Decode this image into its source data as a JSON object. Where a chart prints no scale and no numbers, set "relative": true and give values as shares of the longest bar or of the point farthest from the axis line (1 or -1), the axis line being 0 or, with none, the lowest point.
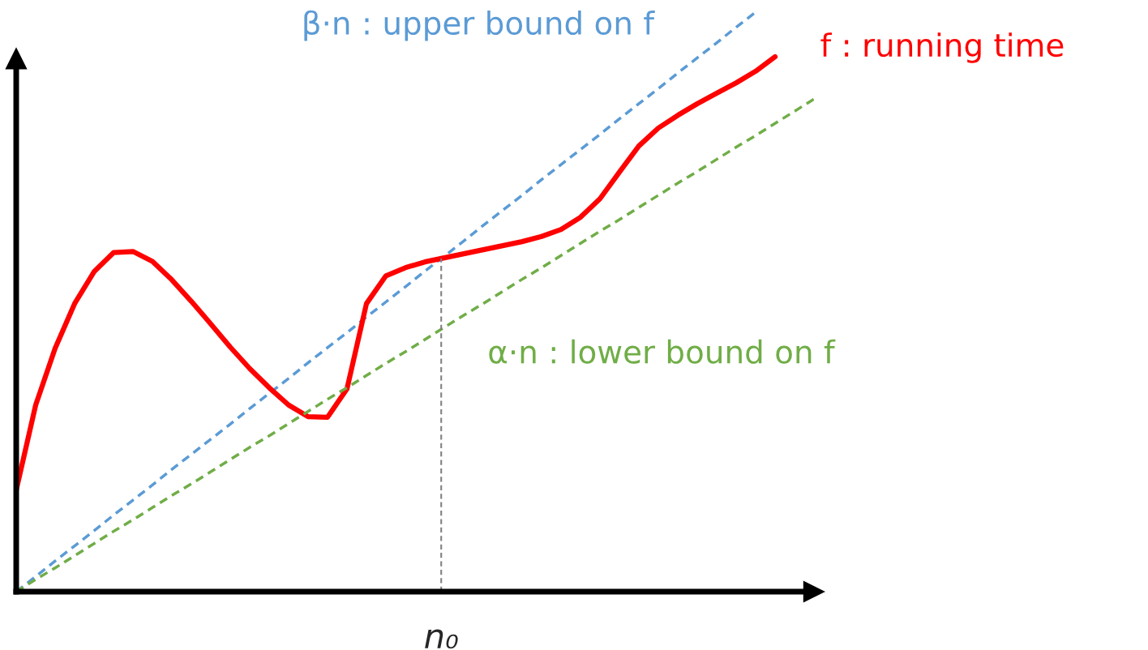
{
  "chart_data": {
    "type": "line",
    "relative": true,
    "legend": false,
    "marker": "none",
    "annotations": [
      "n₀"
    ],
    "categories": [
      null,
      null,
      null,
      null,
      null,
      null,
      null,
      null,
      null,
      null,
      null,
      null,
      null,
      null,
      null,
      null,
      null,
      null,
      null,
      null,
      null,
      null,
      null,
      null,
      null,
      null,
      null,
      null,
      null,
      null,
      null,
      null,
      null,
      null,
      null,
      null,
      null,
      null,
      null,
      null,
      null,
      null
    ],
    "series": [
      {
        "name": "β·n : upper bound on f",
        "color": "#5b9bd5",
        "line_style": "dashed",
        "values": [
          0,
          0.026,
          0.053,
          0.079,
          0.105,
          0.132,
          0.158,
          0.184,
          0.211,
          0.237,
          0.263,
          0.289,
          0.316,
          0.342,
          0.368,
          0.395,
          0.421,
          0.447,
          0.474,
          0.5,
          0.526,
          0.553,
          0.579,
          0.605,
          0.632,
          0.658,
          0.684,
          0.711,
          0.737,
          0.763,
          0.789,
          0.816,
          0.842,
          0.868,
          0.895,
          0.921,
          0.947,
          0.974,
          1.0,
          null,
          null,
          null
        ]
      },
      {
        "name": "f : running time",
        "color": "#ff0000",
        "line_style": "solid",
        "values": [
          0.175,
          0.322,
          0.42,
          0.497,
          0.552,
          0.585,
          0.587,
          0.57,
          0.538,
          0.501,
          0.462,
          0.422,
          0.385,
          0.352,
          0.322,
          0.302,
          0.301,
          0.35,
          0.497,
          0.545,
          0.559,
          0.569,
          0.576,
          0.583,
          0.59,
          0.597,
          0.604,
          0.613,
          0.625,
          0.646,
          0.678,
          0.724,
          0.769,
          0.8,
          0.822,
          0.842,
          0.86,
          0.878,
          0.898,
          0.923,
          null,
          null
        ]
      },
      {
        "name": "α·n : lower bound on f",
        "color": "#70ad47",
        "line_style": "dashed",
        "values": [
          0,
          0.021,
          0.041,
          0.062,
          0.083,
          0.104,
          0.124,
          0.145,
          0.166,
          0.186,
          0.207,
          0.228,
          0.249,
          0.269,
          0.29,
          0.311,
          0.332,
          0.352,
          0.373,
          0.394,
          0.414,
          0.435,
          0.456,
          0.477,
          0.497,
          0.518,
          0.539,
          0.559,
          0.58,
          0.601,
          0.622,
          0.642,
          0.663,
          0.684,
          0.705,
          0.725,
          0.746,
          0.767,
          0.787,
          0.808,
          0.829,
          0.85
        ]
      }
    ]
  }
}
